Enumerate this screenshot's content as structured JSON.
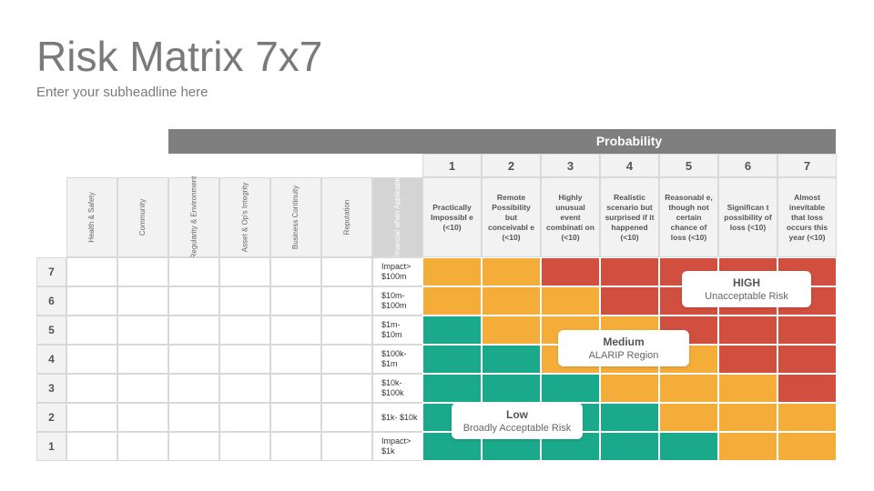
{
  "title": "Risk Matrix 7x7",
  "subtitle": "Enter your subheadline here",
  "probability_label": "Probability",
  "colors": {
    "green": "#1aa98b",
    "yellow": "#f5ad3a",
    "red": "#d04f3e"
  },
  "probability_levels": [
    {
      "num": "1",
      "desc": "Practically Impossibl e (<10)"
    },
    {
      "num": "2",
      "desc": "Remote Possibility but conceivabl e (<10)"
    },
    {
      "num": "3",
      "desc": "Highly unusual event combinati on (<10)"
    },
    {
      "num": "4",
      "desc": "Realistic scenario but surprised if it happened (<10)"
    },
    {
      "num": "5",
      "desc": "Reasonabl e, though not certain chance of loss (<10)"
    },
    {
      "num": "6",
      "desc": "Significan t possibility of loss (<10)"
    },
    {
      "num": "7",
      "desc": "Almost inevitable that loss occurs this year (<10)"
    }
  ],
  "impact_categories": [
    "Health & Safety",
    "Community",
    "Regularity & Environment",
    "Asset & Op's Integrity",
    "Business Continuity",
    "Reputation",
    "Financial when Applicable"
  ],
  "impact_rows": [
    {
      "num": "7",
      "financial": "Impact> $100m",
      "risk": [
        "y",
        "y",
        "r",
        "r",
        "r",
        "r",
        "r"
      ]
    },
    {
      "num": "6",
      "financial": "$10m- $100m",
      "risk": [
        "y",
        "y",
        "y",
        "r",
        "r",
        "r",
        "r"
      ]
    },
    {
      "num": "5",
      "financial": "$1m- $10m",
      "risk": [
        "g",
        "y",
        "y",
        "y",
        "r",
        "r",
        "r"
      ]
    },
    {
      "num": "4",
      "financial": "$100k- $1m",
      "risk": [
        "g",
        "g",
        "y",
        "y",
        "y",
        "r",
        "r"
      ]
    },
    {
      "num": "3",
      "financial": "$10k- $100k",
      "risk": [
        "g",
        "g",
        "g",
        "y",
        "y",
        "y",
        "r"
      ]
    },
    {
      "num": "2",
      "financial": "$1k- $10k",
      "risk": [
        "g",
        "g",
        "g",
        "g",
        "y",
        "y",
        "y"
      ]
    },
    {
      "num": "1",
      "financial": "Impact> $1k",
      "risk": [
        "g",
        "g",
        "g",
        "g",
        "g",
        "y",
        "y"
      ]
    }
  ],
  "zones": [
    {
      "name": "HIGH",
      "desc": "Unacceptable Risk"
    },
    {
      "name": "Medium",
      "desc": "ALARIP Region"
    },
    {
      "name": "Low",
      "desc": "Broadly Acceptable Risk"
    }
  ]
}
